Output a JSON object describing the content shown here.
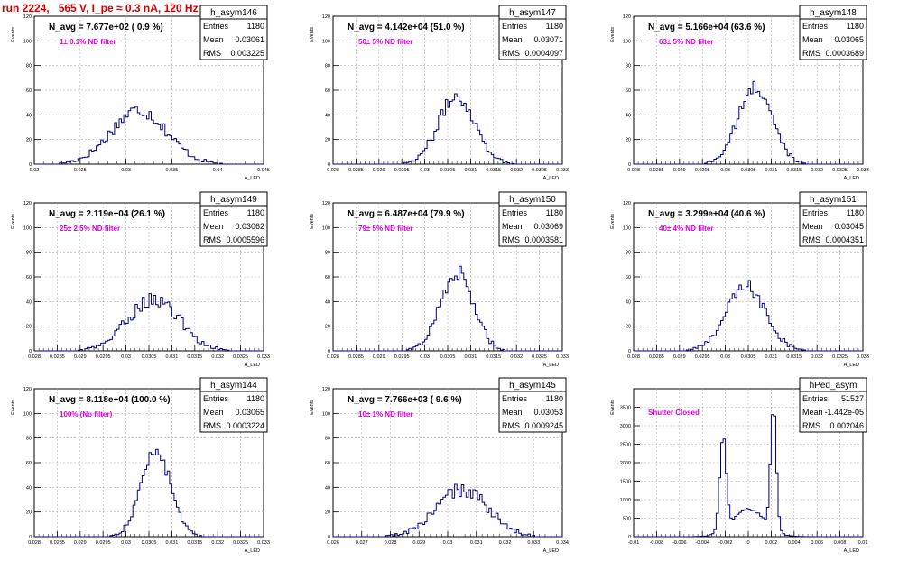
{
  "run_title": "run 2224,   565 V, I_pe ≈ 0.3 nA, 120 Hz",
  "colors": {
    "histogram_line": "#000080",
    "annotation": "#e000e0",
    "title": "#d40000",
    "grid": "#b0b0b0"
  },
  "chart_data": [
    {
      "type": "bar",
      "histname": "h_asym146",
      "nav_label": "N_avg = 7.677e+02 ( 0.9 %)",
      "filter_label": "1± 0.1% ND filter",
      "stats": [
        [
          "Entries",
          "1180"
        ],
        [
          "Mean",
          "0.03061"
        ],
        [
          "RMS",
          "0.003225"
        ]
      ],
      "xlabel": "A_LED",
      "ylabel": "Events",
      "xlim": [
        0.0185,
        0.045
      ],
      "ylim": [
        0,
        120
      ],
      "xticks": [
        "0.02",
        "0.025",
        "0.03",
        "0.035",
        "0.04",
        "0.045"
      ],
      "yticks": [
        "0",
        "20",
        "40",
        "60",
        "80",
        "100",
        "120"
      ],
      "peaks": [
        [
          0.0306,
          0.0032,
          44
        ]
      ],
      "noise": 6
    },
    {
      "type": "bar",
      "histname": "h_asym147",
      "nav_label": "N_avg = 4.142e+04 (51.0 %)",
      "filter_label": "50± 5% ND filter",
      "stats": [
        [
          "Entries",
          "1180"
        ],
        [
          "Mean",
          "0.03071"
        ],
        [
          "RMS",
          "0.0004097"
        ]
      ],
      "xlabel": "A_LED",
      "ylabel": "Events",
      "xlim": [
        0.028,
        0.033
      ],
      "ylim": [
        0,
        120
      ],
      "xticks": [
        "0.028",
        "0.0285",
        "0.029",
        "0.0295",
        "0.03",
        "0.0305",
        "0.031",
        "0.0315",
        "0.032",
        "0.0325",
        "0.033"
      ],
      "yticks": [
        "0",
        "20",
        "40",
        "60",
        "80",
        "100",
        "120"
      ],
      "peaks": [
        [
          0.0307,
          0.0004,
          55
        ]
      ],
      "noise": 6
    },
    {
      "type": "bar",
      "histname": "h_asym148",
      "nav_label": "N_avg = 5.166e+04 (63.6 %)",
      "filter_label": "63± 5% ND filter",
      "stats": [
        [
          "Entries",
          "1180"
        ],
        [
          "Mean",
          "0.03065"
        ],
        [
          "RMS",
          "0.0003689"
        ]
      ],
      "xlabel": "A_LED",
      "ylabel": "Events",
      "xlim": [
        0.028,
        0.033
      ],
      "ylim": [
        0,
        120
      ],
      "xticks": [
        "0.028",
        "0.0285",
        "0.029",
        "0.0295",
        "0.03",
        "0.0305",
        "0.031",
        "0.0315",
        "0.032",
        "0.0325",
        "0.033"
      ],
      "yticks": [
        "0",
        "20",
        "40",
        "60",
        "80",
        "100",
        "120"
      ],
      "peaks": [
        [
          0.03065,
          0.00037,
          62
        ]
      ],
      "noise": 6
    },
    {
      "type": "bar",
      "histname": "h_asym149",
      "nav_label": "N_avg = 2.119e+04 (26.1 %)",
      "filter_label": "25± 2.5% ND filter",
      "stats": [
        [
          "Entries",
          "1180"
        ],
        [
          "Mean",
          "0.03062"
        ],
        [
          "RMS",
          "0.0005596"
        ]
      ],
      "xlabel": "A_LED",
      "ylabel": "Events",
      "xlim": [
        0.028,
        0.033
      ],
      "ylim": [
        0,
        120
      ],
      "xticks": [
        "0.028",
        "0.0285",
        "0.029",
        "0.0295",
        "0.03",
        "0.0305",
        "0.031",
        "0.0315",
        "0.032",
        "0.0325",
        "0.033"
      ],
      "yticks": [
        "0",
        "20",
        "40",
        "60",
        "80",
        "100",
        "120"
      ],
      "peaks": [
        [
          0.0306,
          0.00056,
          42
        ]
      ],
      "noise": 6
    },
    {
      "type": "bar",
      "histname": "h_asym150",
      "nav_label": "N_avg = 6.487e+04 (79.9 %)",
      "filter_label": "79± 5% ND filter",
      "stats": [
        [
          "Entries",
          "1180"
        ],
        [
          "Mean",
          "0.03069"
        ],
        [
          "RMS",
          "0.0003581"
        ]
      ],
      "xlabel": "A_LED",
      "ylabel": "Events",
      "xlim": [
        0.028,
        0.033
      ],
      "ylim": [
        0,
        120
      ],
      "xticks": [
        "0.028",
        "0.0285",
        "0.029",
        "0.0295",
        "0.03",
        "0.0305",
        "0.031",
        "0.0315",
        "0.032",
        "0.0325",
        "0.033"
      ],
      "yticks": [
        "0",
        "20",
        "40",
        "60",
        "80",
        "100",
        "120"
      ],
      "peaks": [
        [
          0.0307,
          0.00036,
          64
        ]
      ],
      "noise": 7
    },
    {
      "type": "bar",
      "histname": "h_asym151",
      "nav_label": "N_avg = 3.299e+04 (40.6 %)",
      "filter_label": "40± 4% ND filter",
      "stats": [
        [
          "Entries",
          "1180"
        ],
        [
          "Mean",
          "0.03045"
        ],
        [
          "RMS",
          "0.0004351"
        ]
      ],
      "xlabel": "A_LED",
      "ylabel": "Events",
      "xlim": [
        0.028,
        0.033
      ],
      "ylim": [
        0,
        120
      ],
      "xticks": [
        "0.028",
        "0.0285",
        "0.029",
        "0.0295",
        "0.03",
        "0.0305",
        "0.031",
        "0.0315",
        "0.032",
        "0.0325",
        "0.033"
      ],
      "yticks": [
        "0",
        "20",
        "40",
        "60",
        "80",
        "100",
        "120"
      ],
      "peaks": [
        [
          0.03045,
          0.00043,
          52
        ]
      ],
      "noise": 6
    },
    {
      "type": "bar",
      "histname": "h_asym144",
      "nav_label": "N_avg = 8.118e+04 (100.0 %)",
      "filter_label": "100% (No filter)",
      "stats": [
        [
          "Entries",
          "1180"
        ],
        [
          "Mean",
          "0.03065"
        ],
        [
          "RMS",
          "0.0003224"
        ]
      ],
      "xlabel": "A_LED",
      "ylabel": "Events",
      "xlim": [
        0.028,
        0.033
      ],
      "ylim": [
        0,
        120
      ],
      "xticks": [
        "0.028",
        "0.0285",
        "0.029",
        "0.0295",
        "0.03",
        "0.0305",
        "0.031",
        "0.0315",
        "0.032",
        "0.0325",
        "0.033"
      ],
      "yticks": [
        "0",
        "20",
        "40",
        "60",
        "80",
        "100",
        "120"
      ],
      "peaks": [
        [
          0.03065,
          0.00032,
          70
        ]
      ],
      "noise": 6
    },
    {
      "type": "bar",
      "histname": "h_asym145",
      "nav_label": "N_avg = 7.766e+03 ( 9.6 %)",
      "filter_label": "10± 1% ND filter",
      "stats": [
        [
          "Entries",
          "1180"
        ],
        [
          "Mean",
          "0.03053"
        ],
        [
          "RMS",
          "0.0009245"
        ]
      ],
      "xlabel": "A_LED",
      "ylabel": "Events",
      "xlim": [
        0.026,
        0.034
      ],
      "ylim": [
        0,
        120
      ],
      "xticks": [
        "0.026",
        "0.027",
        "0.028",
        "0.029",
        "0.03",
        "0.031",
        "0.032",
        "0.033",
        "0.034"
      ],
      "yticks": [
        "0",
        "20",
        "40",
        "60",
        "80",
        "100",
        "120"
      ],
      "peaks": [
        [
          0.0305,
          0.0009,
          38
        ]
      ],
      "noise": 6
    },
    {
      "type": "bar",
      "histname": "hPed_asym",
      "nav_label": "",
      "filter_label": "Shutter Closed",
      "stats": [
        [
          "Entries",
          "51527"
        ],
        [
          "Mean",
          "-1.442e-05"
        ],
        [
          "RMS",
          "0.002046"
        ]
      ],
      "xlabel": "A_LED",
      "ylabel": "Events",
      "xlim": [
        -0.01,
        0.01
      ],
      "ylim": [
        0,
        4000
      ],
      "xticks": [
        "-0.01",
        "-0.008",
        "-0.006",
        "-0.004",
        "-0.002",
        "0",
        "0.002",
        "0.004",
        "0.006",
        "0.008",
        "0.01"
      ],
      "yticks": [
        "0",
        "500",
        "1000",
        "1500",
        "2000",
        "2500",
        "3000",
        "3500"
      ],
      "peaks": [
        [
          -0.0022,
          0.00028,
          2500
        ],
        [
          0.0022,
          0.00025,
          3300
        ],
        [
          0.0,
          0.0014,
          750
        ]
      ],
      "noise": 60
    }
  ]
}
